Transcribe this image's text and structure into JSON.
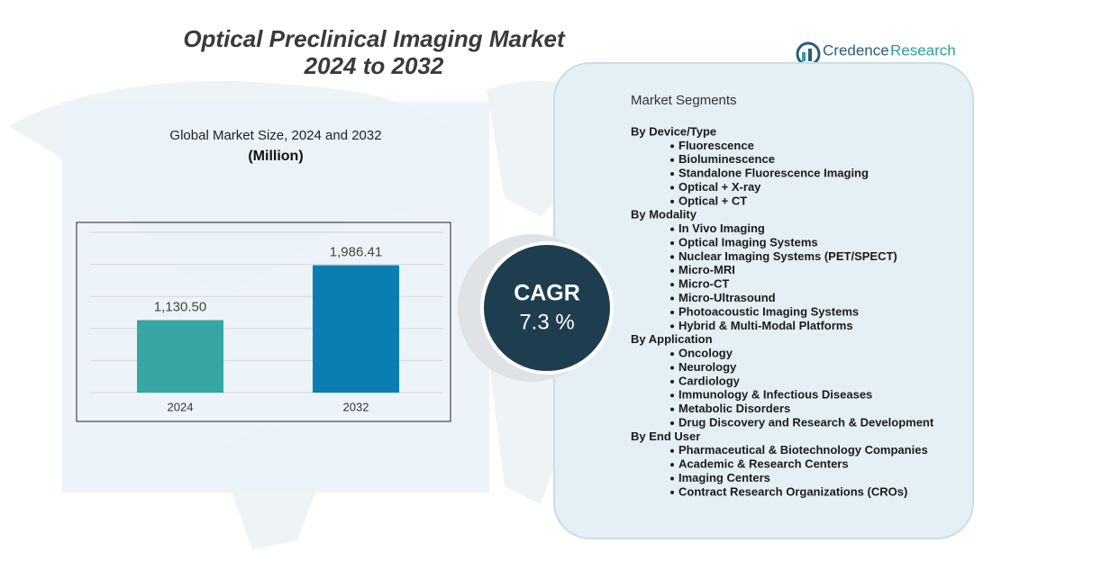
{
  "title": "Optical Preclinical Imaging Market",
  "subtitle": "2024 to 2032",
  "logo": {
    "first": "Credence",
    "second": "Research"
  },
  "chart_data": {
    "type": "bar",
    "title": "Global Market Size,  2024 and 2032",
    "subtitle": "(Million)",
    "categories": [
      "2024",
      "2032"
    ],
    "values": [
      1130.5,
      1986.41
    ],
    "value_labels": [
      "1,130.50",
      "1,986.41"
    ],
    "colors": [
      "#35a6a4",
      "#0a7eb1"
    ],
    "ylim": [
      0,
      2500
    ],
    "yticks": [
      0,
      500,
      1000,
      1500,
      2000,
      2500
    ],
    "grid": true
  },
  "cagr": {
    "label": "CAGR",
    "value": "7.3 %"
  },
  "segments": {
    "title": "Market Segments",
    "groups": [
      {
        "name": "By Device/Type",
        "items": [
          "Fluorescence",
          "Bioluminescence",
          "Standalone Fluorescence Imaging",
          "Optical + X-ray",
          "Optical + CT"
        ]
      },
      {
        "name": "By Modality",
        "items": [
          "In Vivo Imaging",
          "Optical Imaging Systems",
          "Nuclear Imaging Systems (PET/SPECT)",
          "Micro-MRI",
          "Micro-CT",
          "Micro-Ultrasound",
          "Photoacoustic  Imaging Systems",
          "Hybrid & Multi-Modal Platforms"
        ]
      },
      {
        "name": "By Application",
        "items": [
          "Oncology",
          "Neurology",
          "Cardiology",
          "Immunology & Infectious  Diseases",
          "Metabolic Disorders",
          "Drug Discovery  and Research & Development"
        ]
      },
      {
        "name": "By End User",
        "items": [
          "Pharmaceutical & Biotechnology Companies",
          "Academic & Research Centers",
          "Imaging Centers",
          "Contract Research Organizations (CROs)"
        ]
      }
    ]
  }
}
